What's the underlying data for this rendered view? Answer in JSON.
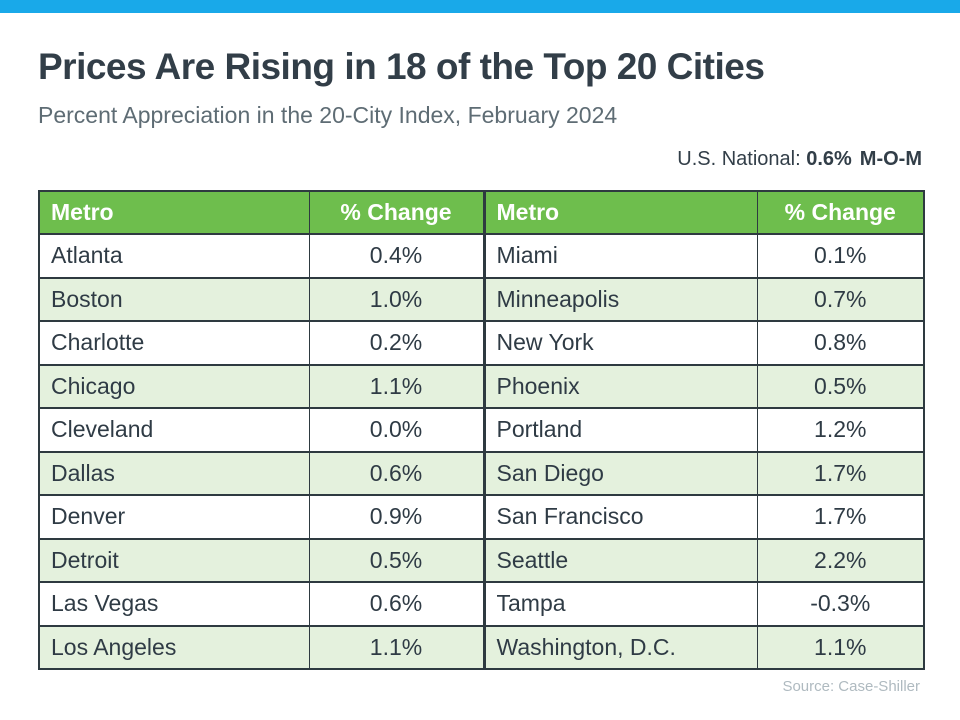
{
  "header": {
    "title": "Prices Are Rising in 18 of the Top 20 Cities",
    "subtitle": "Percent Appreciation in the 20-City Index, February 2024",
    "national_label": "U.S. National:",
    "national_value": "0.6%",
    "national_period": "M-O-M"
  },
  "chart_data": {
    "type": "table",
    "title": "Prices Are Rising in 18 of the Top 20 Cities",
    "subtitle": "Percent Appreciation in the 20-City Index, February 2024",
    "national": {
      "label": "U.S. National:",
      "value": "0.6%",
      "period": "M-O-M"
    },
    "columns": [
      "Metro",
      "% Change",
      "Metro",
      "% Change"
    ],
    "left_rows": [
      {
        "metro": "Atlanta",
        "change": "0.4%"
      },
      {
        "metro": "Boston",
        "change": "1.0%"
      },
      {
        "metro": "Charlotte",
        "change": "0.2%"
      },
      {
        "metro": "Chicago",
        "change": "1.1%"
      },
      {
        "metro": "Cleveland",
        "change": "0.0%"
      },
      {
        "metro": "Dallas",
        "change": "0.6%"
      },
      {
        "metro": "Denver",
        "change": "0.9%"
      },
      {
        "metro": "Detroit",
        "change": "0.5%"
      },
      {
        "metro": "Las Vegas",
        "change": "0.6%"
      },
      {
        "metro": "Los Angeles",
        "change": "1.1%"
      }
    ],
    "right_rows": [
      {
        "metro": "Miami",
        "change": "0.1%"
      },
      {
        "metro": "Minneapolis",
        "change": "0.7%"
      },
      {
        "metro": "New York",
        "change": "0.8%"
      },
      {
        "metro": "Phoenix",
        "change": "0.5%"
      },
      {
        "metro": "Portland",
        "change": "1.2%"
      },
      {
        "metro": "San Diego",
        "change": "1.7%"
      },
      {
        "metro": "San Francisco",
        "change": "1.7%"
      },
      {
        "metro": "Seattle",
        "change": "2.2%"
      },
      {
        "metro": "Tampa",
        "change": "-0.3%"
      },
      {
        "metro": "Washington, D.C.",
        "change": "1.1%"
      }
    ]
  },
  "footer": {
    "source": "Source: Case-Shiller"
  },
  "colors": {
    "accent_blue": "#19A9E9",
    "header_green": "#6EBE4D",
    "row_alt_green": "#E4F1DD",
    "border_dark": "#2E3A40",
    "title_text": "#323E48",
    "subtitle_text": "#5E6C74",
    "source_text": "#AFBAC0"
  }
}
